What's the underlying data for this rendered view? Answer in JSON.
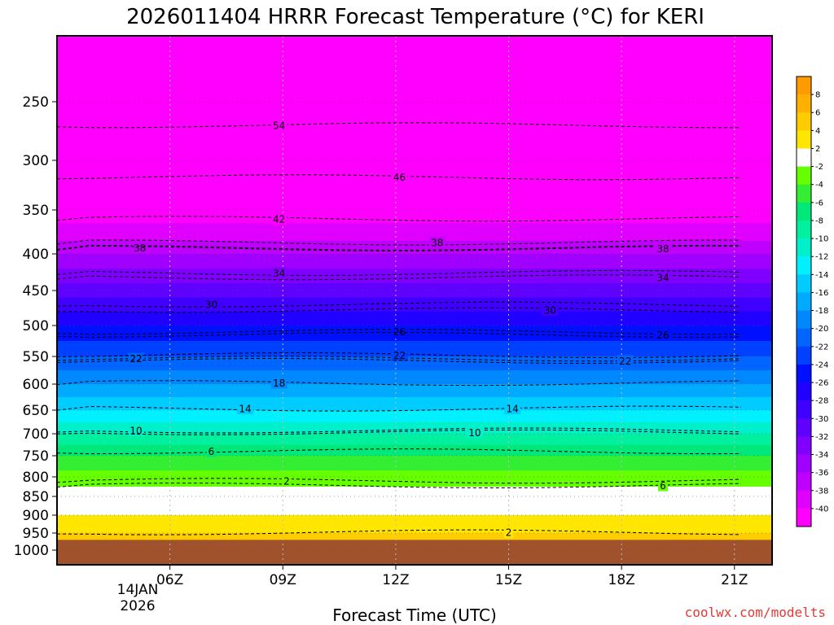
{
  "title": "2026011404 HRRR Forecast Temperature (°C) for KERI",
  "watermark": "coolwx.com/modelts",
  "xlabel": "Forecast Time (UTC)",
  "date_label": {
    "line1": "14JAN",
    "line2": "2026"
  },
  "chart_data": {
    "type": "heatmap",
    "title": "2026011404 HRRR Forecast Temperature (°C) for KERI",
    "xlabel": "Forecast Time (UTC)",
    "ylabel": "",
    "x_hours": [
      4,
      5,
      6,
      7,
      8,
      9,
      10,
      11,
      12,
      13,
      14,
      15,
      16,
      17,
      18,
      19,
      20,
      21,
      22
    ],
    "xlim": [
      3,
      22
    ],
    "x_ticks": [
      {
        "hour": 6,
        "label": "06Z"
      },
      {
        "hour": 9,
        "label": "09Z"
      },
      {
        "hour": 12,
        "label": "12Z"
      },
      {
        "hour": 15,
        "label": "15Z"
      },
      {
        "hour": 18,
        "label": "18Z"
      },
      {
        "hour": 21,
        "label": "21Z"
      }
    ],
    "pressure_levels_hPa": [
      200,
      250,
      300,
      350,
      400,
      450,
      500,
      550,
      600,
      650,
      700,
      750,
      800,
      850,
      900,
      950,
      1000
    ],
    "y_ticks": [
      250,
      300,
      350,
      400,
      450,
      500,
      550,
      600,
      650,
      700,
      750,
      800,
      850,
      900,
      950,
      1000
    ],
    "ylim_hPa": [
      200,
      1000
    ],
    "ground_pressure_hPa": 970,
    "ground_color": "#a0522d",
    "grid": true,
    "temperature_profile": [
      {
        "p": 200,
        "t": -62
      },
      {
        "p": 250,
        "t": -56
      },
      {
        "p": 300,
        "t": -47
      },
      {
        "p": 350,
        "t": -42
      },
      {
        "p": 400,
        "t": -36
      },
      {
        "p": 450,
        "t": -31
      },
      {
        "p": 500,
        "t": -26
      },
      {
        "p": 550,
        "t": -22
      },
      {
        "p": 600,
        "t": -18
      },
      {
        "p": 650,
        "t": -14
      },
      {
        "p": 700,
        "t": -10
      },
      {
        "p": 750,
        "t": -6
      },
      {
        "p": 800,
        "t": -3
      },
      {
        "p": 850,
        "t": -1
      },
      {
        "p": 900,
        "t": 2
      },
      {
        "p": 950,
        "t": 4
      },
      {
        "p": 1000,
        "t": 6
      }
    ],
    "contour_labels": [
      {
        "value": "54",
        "hour": 8.9,
        "p": 270
      },
      {
        "value": "46",
        "hour": 12.1,
        "p": 317
      },
      {
        "value": "42",
        "hour": 8.9,
        "p": 360
      },
      {
        "value": "38",
        "hour": 5.2,
        "p": 393
      },
      {
        "value": "38",
        "hour": 13.1,
        "p": 387
      },
      {
        "value": "38",
        "hour": 19.1,
        "p": 394
      },
      {
        "value": "34",
        "hour": 8.9,
        "p": 426
      },
      {
        "value": "34",
        "hour": 19.1,
        "p": 432
      },
      {
        "value": "30",
        "hour": 7.1,
        "p": 470
      },
      {
        "value": "30",
        "hour": 16.1,
        "p": 478
      },
      {
        "value": "26",
        "hour": 12.1,
        "p": 510
      },
      {
        "value": "26",
        "hour": 19.1,
        "p": 515
      },
      {
        "value": "22",
        "hour": 5.1,
        "p": 554
      },
      {
        "value": "22",
        "hour": 12.1,
        "p": 548
      },
      {
        "value": "22",
        "hour": 18.1,
        "p": 558
      },
      {
        "value": "18",
        "hour": 8.9,
        "p": 598
      },
      {
        "value": "14",
        "hour": 8.0,
        "p": 647
      },
      {
        "value": "14",
        "hour": 15.1,
        "p": 647
      },
      {
        "value": "10",
        "hour": 5.1,
        "p": 693
      },
      {
        "value": "10",
        "hour": 14.1,
        "p": 697
      },
      {
        "value": "6",
        "hour": 7.1,
        "p": 740
      },
      {
        "value": "6",
        "hour": 19.1,
        "p": 822
      },
      {
        "value": "2",
        "hour": 9.1,
        "p": 810
      },
      {
        "value": "2",
        "hour": 15.0,
        "p": 948
      }
    ],
    "colorbar": {
      "levels": [
        8,
        6,
        4,
        2,
        -2,
        -4,
        -6,
        -8,
        -10,
        -12,
        -14,
        -16,
        -18,
        -20,
        -22,
        -24,
        -26,
        -28,
        -30,
        -32,
        -34,
        -36,
        -38,
        -40
      ],
      "labels": [
        "8",
        "6",
        "4",
        "2",
        "-2",
        "-4",
        "-6",
        "-8",
        "-10",
        "-12",
        "-14",
        "-16",
        "-18",
        "-20",
        "-22",
        "-24",
        "-26",
        "-28",
        "-30",
        "-32",
        "-34",
        "-36",
        "-38",
        "-40"
      ],
      "bands": [
        {
          "range": [
            8,
            10
          ],
          "color": "#ff9a00"
        },
        {
          "range": [
            6,
            8
          ],
          "color": "#ffb000"
        },
        {
          "range": [
            4,
            6
          ],
          "color": "#ffcc00"
        },
        {
          "range": [
            2,
            4
          ],
          "color": "#ffe600"
        },
        {
          "range": [
            -2,
            2
          ],
          "color": "#ffffff"
        },
        {
          "range": [
            -4,
            -2
          ],
          "color": "#66ff00"
        },
        {
          "range": [
            -6,
            -4
          ],
          "color": "#33ee33"
        },
        {
          "range": [
            -8,
            -6
          ],
          "color": "#00e87a"
        },
        {
          "range": [
            -10,
            -8
          ],
          "color": "#00f0a0"
        },
        {
          "range": [
            -12,
            -10
          ],
          "color": "#00f0cc"
        },
        {
          "range": [
            -14,
            -12
          ],
          "color": "#00f0ff"
        },
        {
          "range": [
            -16,
            -14
          ],
          "color": "#00ccff"
        },
        {
          "range": [
            -18,
            -16
          ],
          "color": "#00aaff"
        },
        {
          "range": [
            -20,
            -18
          ],
          "color": "#0088ff"
        },
        {
          "range": [
            -22,
            -20
          ],
          "color": "#0066ff"
        },
        {
          "range": [
            -24,
            -22
          ],
          "color": "#0040ff"
        },
        {
          "range": [
            -26,
            -24
          ],
          "color": "#0010ff"
        },
        {
          "range": [
            -28,
            -26
          ],
          "color": "#2000ff"
        },
        {
          "range": [
            -30,
            -28
          ],
          "color": "#4000ff"
        },
        {
          "range": [
            -32,
            -30
          ],
          "color": "#6000ff"
        },
        {
          "range": [
            -34,
            -32
          ],
          "color": "#8000ff"
        },
        {
          "range": [
            -36,
            -34
          ],
          "color": "#a000ff"
        },
        {
          "range": [
            -38,
            -36
          ],
          "color": "#c000ff"
        },
        {
          "range": [
            -40,
            -38
          ],
          "color": "#e000ff"
        },
        {
          "range": [
            -70,
            -40
          ],
          "color": "#ff00ff"
        }
      ]
    }
  }
}
